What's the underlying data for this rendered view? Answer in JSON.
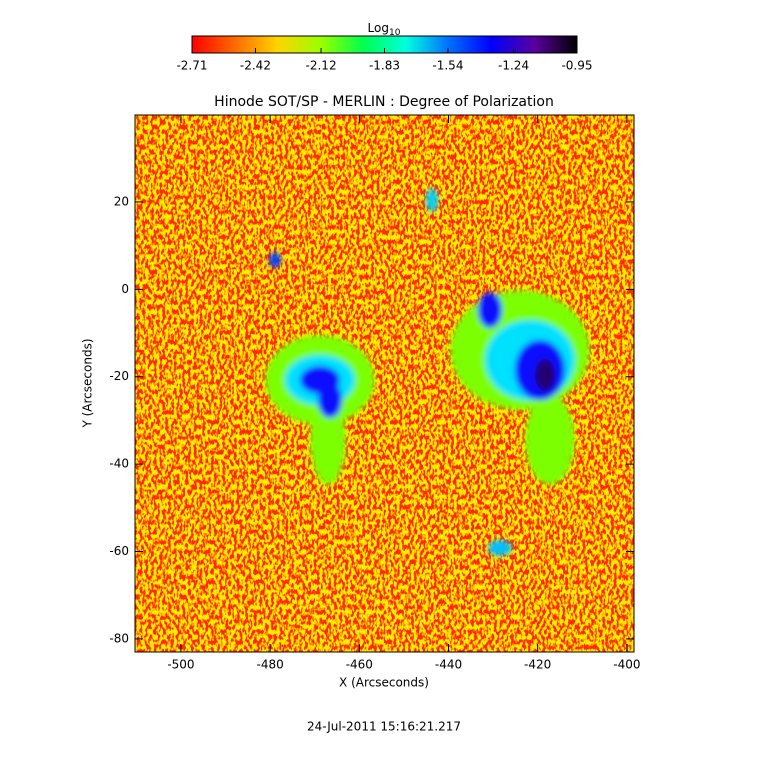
{
  "chart_data": {
    "type": "image",
    "title": "Hinode SOT/SP - MERLIN : Degree of Polarization",
    "x_label": "X (Arcseconds)",
    "y_label": "Y (Arcseconds)",
    "xlim": [
      -510.3,
      -398.4
    ],
    "xticks": [
      -500,
      -480,
      -460,
      -440,
      -420,
      -400
    ],
    "ylim": [
      -83,
      39.9
    ],
    "yticks": [
      20,
      0,
      -20,
      -40,
      -60,
      -80
    ],
    "colorbar": {
      "label": "Log",
      "label_subscript": "10",
      "lim": [
        -2.71,
        -0.95
      ],
      "ticks": [
        -2.71,
        -2.42,
        -2.12,
        -1.83,
        -1.54,
        -1.24,
        -0.95
      ],
      "colors": [
        "#ff0000",
        "#ff6a00",
        "#ffd400",
        "#9cff00",
        "#00ff4c",
        "#00ffe0",
        "#0070ff",
        "#0000ff",
        "#5a00a0",
        "#000000"
      ]
    },
    "footer": "24-Jul-2011 15:16:21.217"
  }
}
